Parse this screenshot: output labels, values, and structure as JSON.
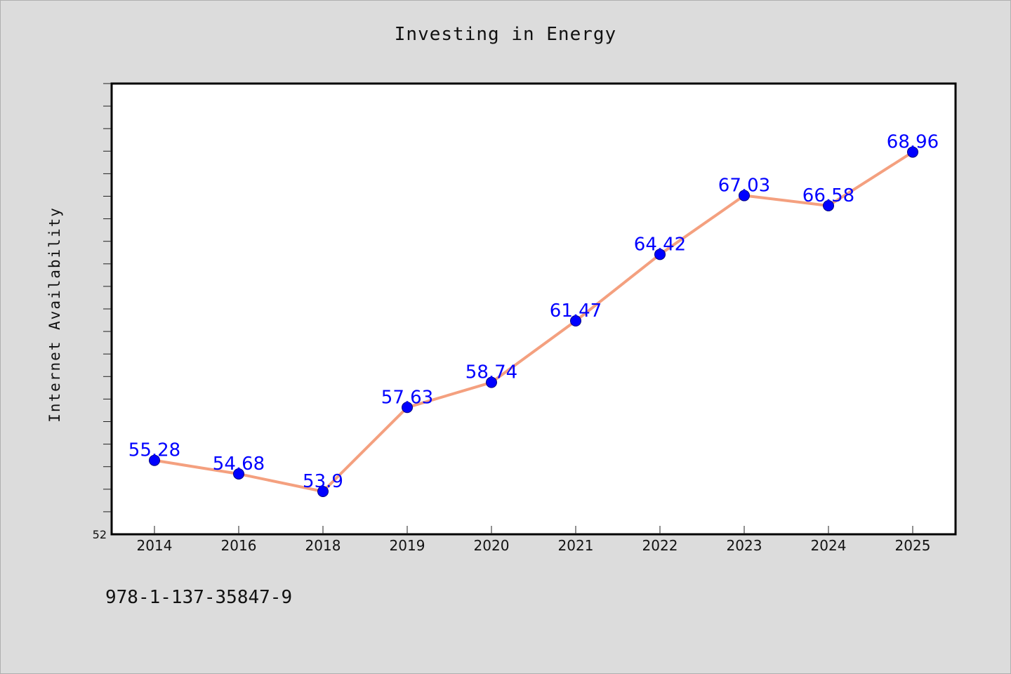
{
  "title": "Investing in Energy",
  "footer_text": "978-1-137-35847-9",
  "colors": {
    "background": "#dcdcdc",
    "plot_background": "#ffffff",
    "line": "#f4a07f",
    "marker": "#0000ff",
    "label": "#0000ff"
  },
  "chart_data": {
    "type": "line",
    "title": "Investing in Energy",
    "xlabel": "",
    "ylabel": "Internet Availability",
    "categories": [
      "2014",
      "2016",
      "2018",
      "2019",
      "2020",
      "2021",
      "2022",
      "2023",
      "2024",
      "2025"
    ],
    "series": [
      {
        "values": [
          55.28,
          54.68,
          53.9,
          57.63,
          58.74,
          61.47,
          64.42,
          67.03,
          66.58,
          68.96
        ]
      }
    ],
    "data_labels": [
      "55.28",
      "54.68",
      "53.9",
      "57.63",
      "58.74",
      "61.47",
      "64.42",
      "67.03",
      "66.58",
      "68.96"
    ],
    "ylim": [
      52,
      72
    ],
    "y_tick_labels": [
      "52"
    ],
    "grid": false,
    "legend": "none"
  }
}
